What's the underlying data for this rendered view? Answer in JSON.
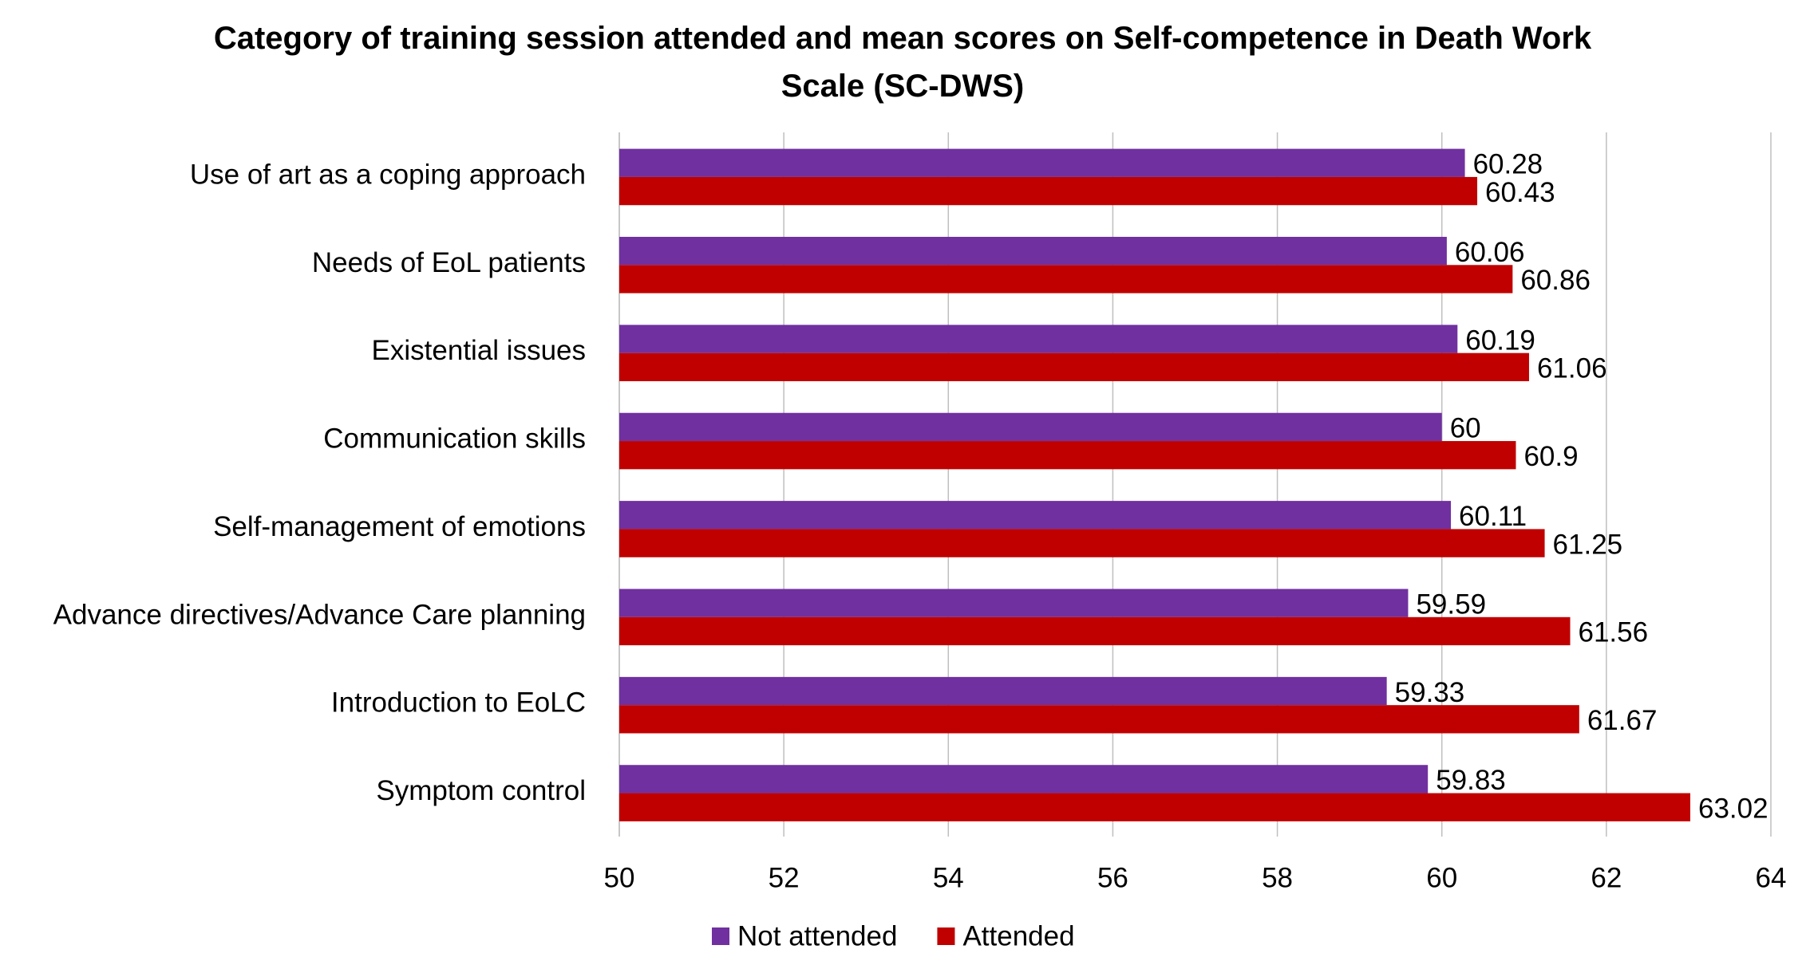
{
  "chart_data": {
    "type": "hbar",
    "title": "Category of training session attended and mean scores on Self-competence in Death Work Scale (SC-DWS)",
    "categories": [
      "Use of art as a coping approach",
      "Needs of EoL patients",
      "Existential issues",
      "Communication skills",
      "Self-management of emotions",
      "Advance directives/Advance Care planning",
      "Introduction to EoLC",
      "Symptom control"
    ],
    "series": [
      {
        "name": "Not attended",
        "color": "#7030a0",
        "values": [
          60.28,
          60.06,
          60.19,
          60,
          60.11,
          59.59,
          59.33,
          59.83
        ]
      },
      {
        "name": "Attended",
        "color": "#c00000",
        "values": [
          60.43,
          60.86,
          61.06,
          60.9,
          61.25,
          61.56,
          61.67,
          63.02
        ]
      }
    ],
    "xlim": [
      50,
      64
    ],
    "xticks": [
      50,
      52,
      54,
      56,
      58,
      60,
      62,
      64
    ],
    "grid": true,
    "legend": "bottom"
  }
}
